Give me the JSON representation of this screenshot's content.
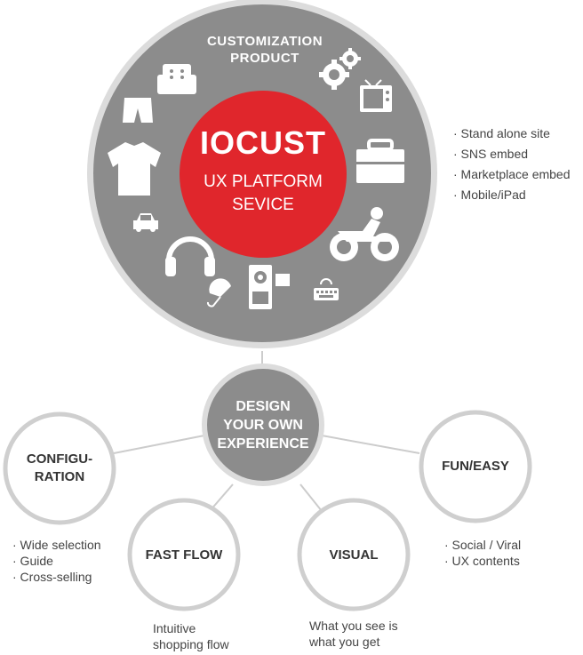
{
  "big_circle": {
    "heading_line1": "CUSTOMIZATION",
    "heading_line2": "PRODUCT",
    "brand": "IOCUST",
    "tagline_line1": "UX PLATFORM",
    "tagline_line2": "SEVICE",
    "icons": [
      "sofa-icon",
      "gears-icon",
      "tv-icon",
      "pants-icon",
      "tshirt-icon",
      "briefcase-icon",
      "car-icon",
      "motorbike-icon",
      "headphones-icon",
      "umbrella-icon",
      "camcorder-icon",
      "keyboard-icon"
    ]
  },
  "channels": [
    "· Stand alone site",
    "· SNS embed",
    "· Marketplace embed",
    "· Mobile/iPad"
  ],
  "hub": {
    "line1": "DESIGN",
    "line2": "YOUR OWN",
    "line3": "EXPERIENCE"
  },
  "nodes": {
    "configuration": {
      "title_line1": "CONFIGU-",
      "title_line2": "RATION",
      "items": [
        "· Wide selection",
        "· Guide",
        "· Cross-selling"
      ]
    },
    "fast_flow": {
      "title": "FAST FLOW",
      "caption_line1": "Intuitive",
      "caption_line2": "shopping flow"
    },
    "visual": {
      "title": "VISUAL",
      "caption_line1": "What you see is",
      "caption_line2": "what you get"
    },
    "fun_easy": {
      "title": "FUN/EASY",
      "items": [
        "· Social / Viral",
        "· UX contents"
      ]
    }
  },
  "colors": {
    "gray": "#8c8c8c",
    "ring": "#d9d9d9",
    "red": "#e0262c",
    "node_border": "#cfcfcf",
    "connector": "#cccccc"
  }
}
